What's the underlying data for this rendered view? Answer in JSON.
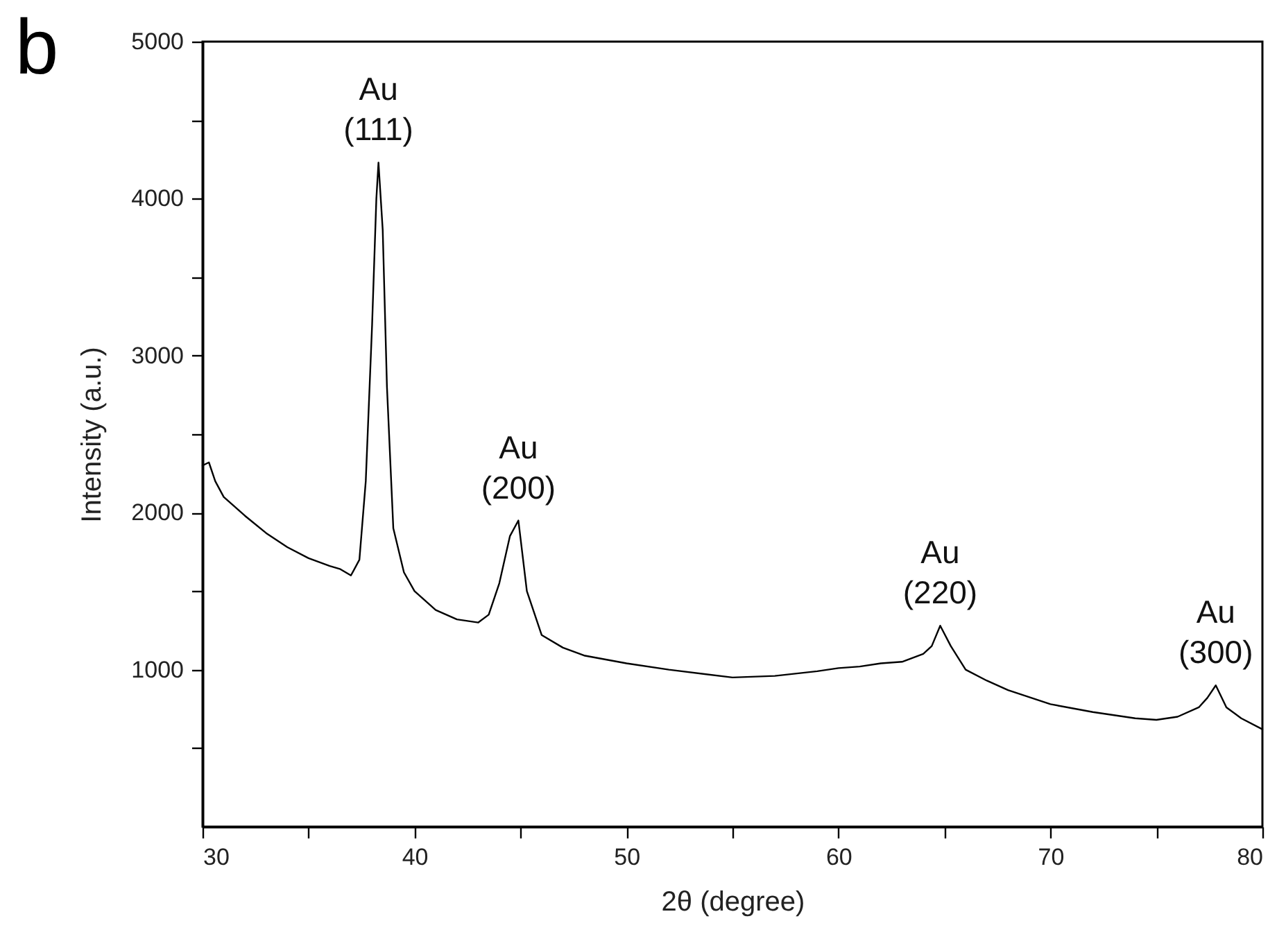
{
  "chart_data": {
    "type": "line",
    "title": "b",
    "xlabel": "2θ (degree)",
    "ylabel": "Intensity (a.u.)",
    "x": [
      30,
      30.3,
      30.6,
      31,
      31.5,
      32,
      33,
      34,
      35,
      36,
      36.5,
      37,
      37.4,
      37.7,
      38.0,
      38.2,
      38.3,
      38.5,
      38.7,
      39.0,
      39.5,
      40,
      41,
      42,
      43,
      43.5,
      44,
      44.5,
      44.9,
      45.3,
      46,
      47,
      48,
      50,
      52,
      55,
      57,
      59,
      60,
      61,
      62,
      63,
      64,
      64.4,
      64.8,
      65.3,
      66,
      67,
      68,
      70,
      72,
      74,
      75,
      76,
      77,
      77.4,
      77.8,
      78.3,
      79,
      80
    ],
    "series": [
      {
        "color": "#000000",
        "values": [
          2300,
          2320,
          2200,
          2100,
          2040,
          1980,
          1870,
          1780,
          1710,
          1660,
          1640,
          1600,
          1700,
          2200,
          3200,
          4000,
          4230,
          3800,
          2800,
          1900,
          1620,
          1500,
          1380,
          1320,
          1300,
          1350,
          1550,
          1850,
          1950,
          1500,
          1220,
          1140,
          1090,
          1040,
          1000,
          950,
          960,
          990,
          1010,
          1020,
          1040,
          1050,
          1100,
          1150,
          1280,
          1150,
          1000,
          930,
          870,
          780,
          730,
          690,
          680,
          700,
          760,
          820,
          900,
          760,
          690,
          620
        ]
      }
    ],
    "xlim": [
      30,
      80
    ],
    "xticks": [
      30,
      {
        "value": 35,
        "label": null
      },
      40,
      {
        "value": 45,
        "label": null
      },
      50,
      {
        "value": 55,
        "label": null
      },
      60,
      {
        "value": 65,
        "label": null
      },
      70,
      {
        "value": 75,
        "label": null
      },
      80
    ],
    "ylim": [
      0,
      5000
    ],
    "yticks": [
      {
        "value": 500,
        "label": null
      },
      1000,
      {
        "value": 1500,
        "label": null
      },
      2000,
      {
        "value": 2500,
        "label": null
      },
      3000,
      {
        "value": 3500,
        "label": null
      },
      4000,
      {
        "value": 4500,
        "label": null
      },
      5000
    ],
    "annotations": [
      {
        "text": "Au (111)",
        "x": 38.3,
        "y": 4230
      },
      {
        "text": "Au (200)",
        "x": 44.9,
        "y": 1950
      },
      {
        "text": "Au (220)",
        "x": 64.8,
        "y": 1280
      },
      {
        "text": "Au (300)",
        "x": 77.8,
        "y": 900
      }
    ],
    "grid": false,
    "marker": "none",
    "line_style": "solid"
  }
}
